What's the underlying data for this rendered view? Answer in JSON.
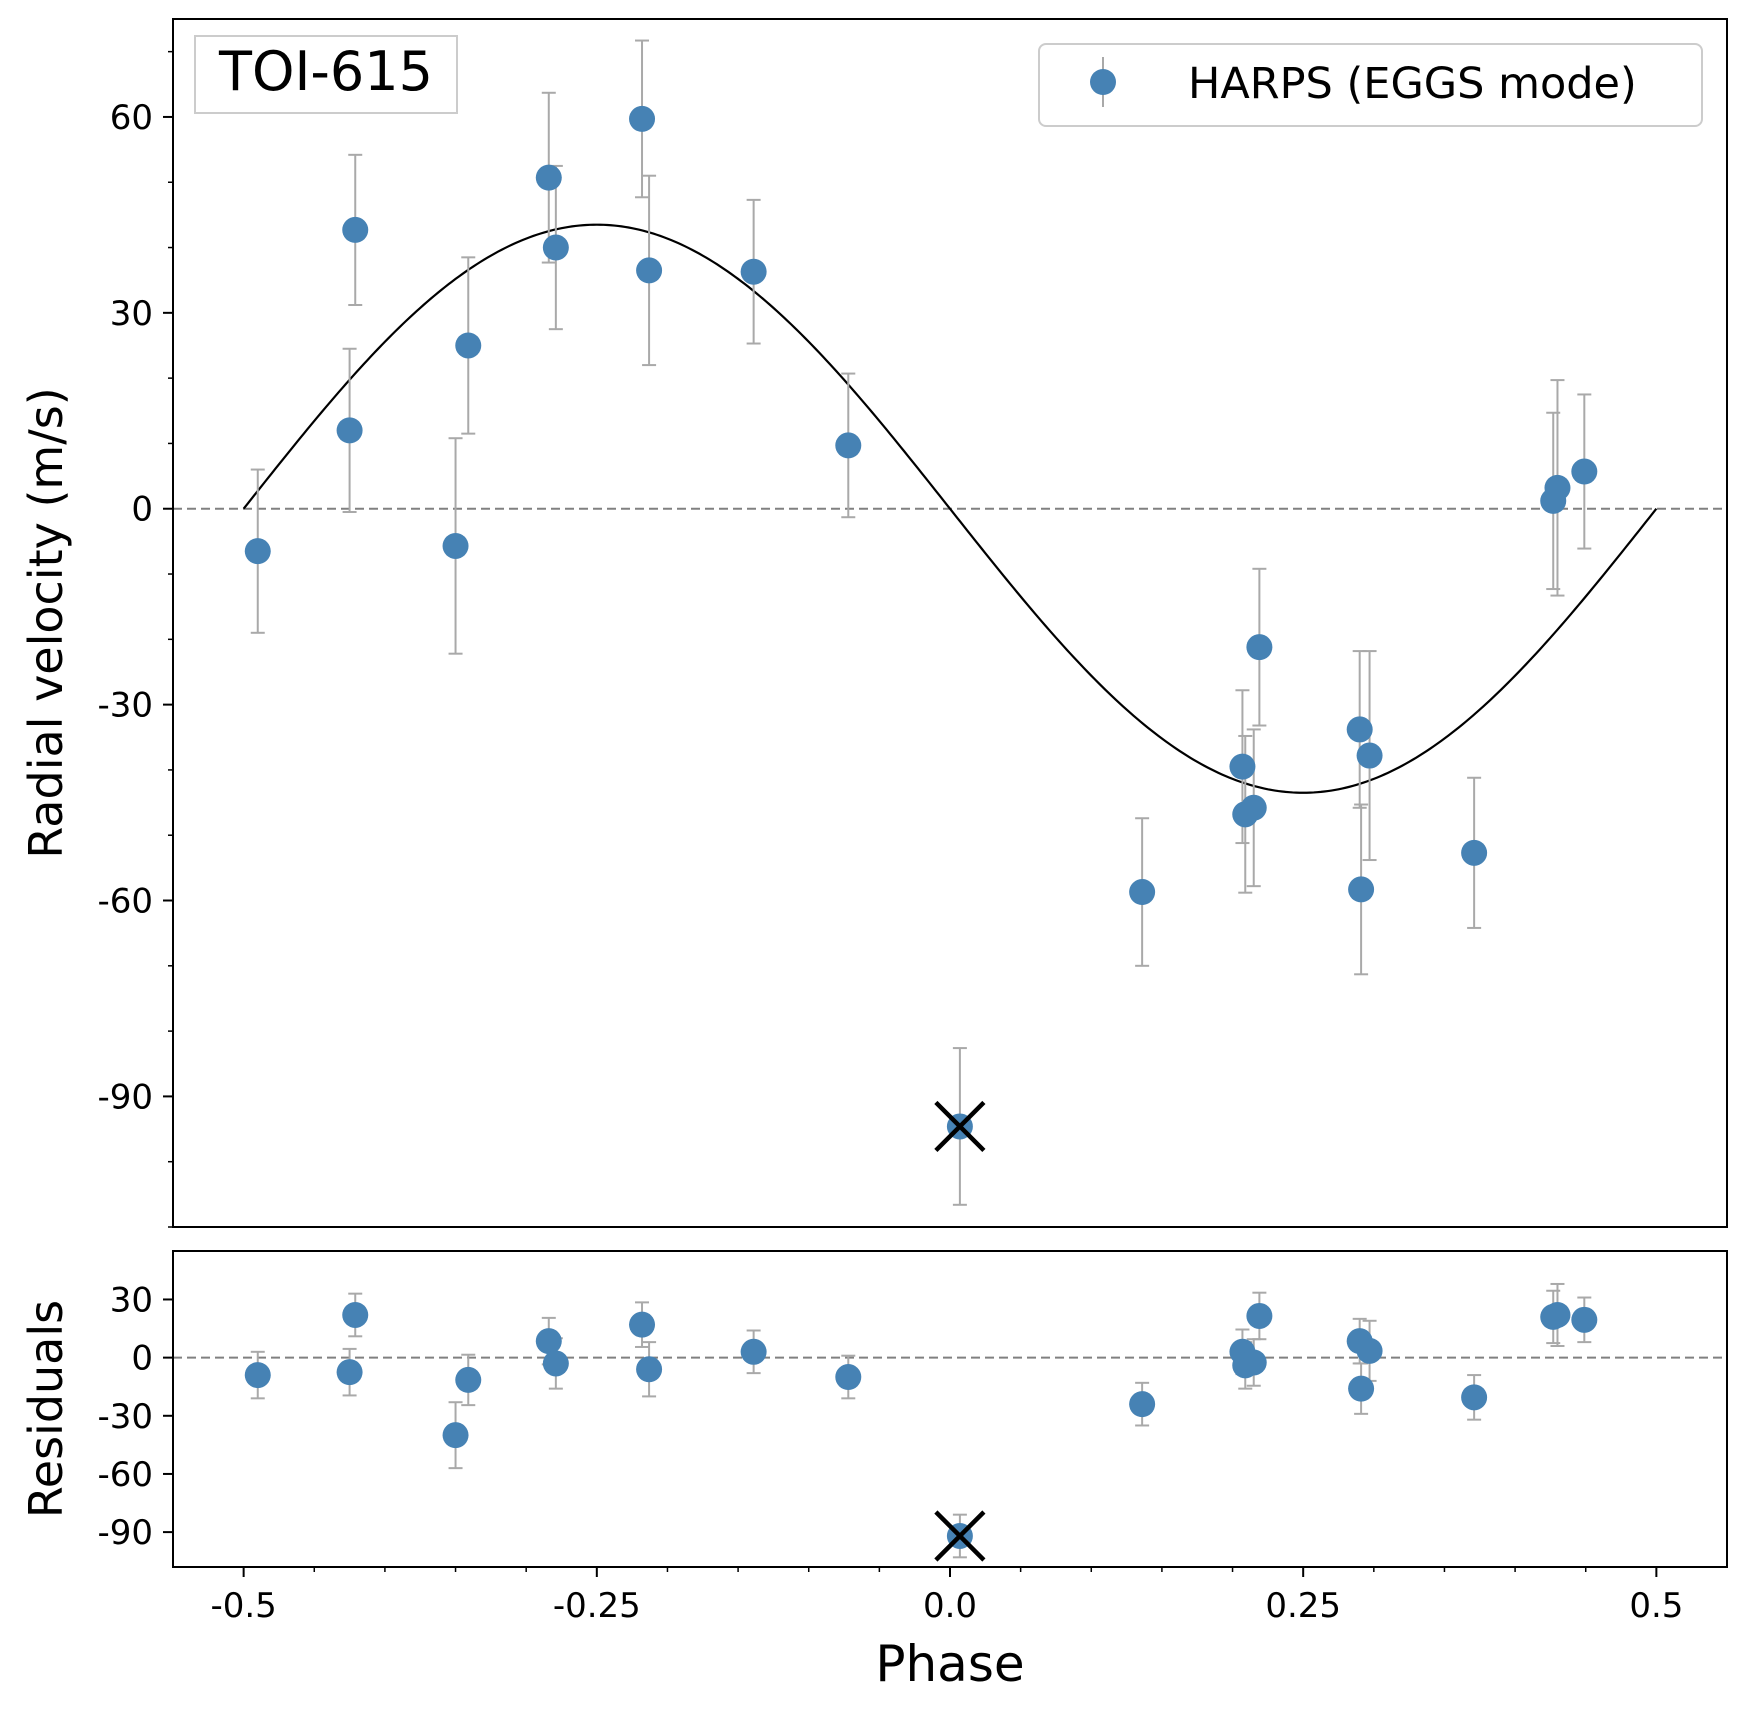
{
  "chart_data": {
    "type": "scatter",
    "title": "TOI-615",
    "xlabel": "Phase",
    "xlim": [
      -0.55,
      0.55
    ],
    "x_ticks": [
      -0.5,
      -0.25,
      0.0,
      0.25,
      0.5
    ],
    "x_tick_labels": [
      "-0.5",
      "-0.25",
      "0.0",
      "0.25",
      "0.5"
    ],
    "legend": {
      "label": "HARPS (EGGS mode)",
      "placement": "top-right"
    },
    "series_color": "#4682b4",
    "errorbar_color": "#a9a9a9",
    "model": {
      "type": "sinusoid",
      "amplitude": 43.5,
      "phase_range": [
        -0.5,
        0.5
      ],
      "shape": "-K*sin(2*pi*phase)"
    },
    "panels": {
      "rv": {
        "ylabel": "Radial velocity (m/s)",
        "ylim": [
          -110,
          75
        ],
        "y_ticks": [
          60,
          30,
          0,
          -30,
          -60,
          -90
        ],
        "y_tick_labels": [
          "60",
          "30",
          "0",
          "-30",
          "-60",
          "-90"
        ],
        "reference_line": 0,
        "points": [
          {
            "phase": -0.49,
            "value": -6.5,
            "error": 12.5
          },
          {
            "phase": -0.425,
            "value": 12.0,
            "error": 12.5
          },
          {
            "phase": -0.421,
            "value": 42.7,
            "error": 11.5
          },
          {
            "phase": -0.35,
            "value": -5.7,
            "error": 16.5
          },
          {
            "phase": -0.341,
            "value": 25.0,
            "error": 13.5
          },
          {
            "phase": -0.284,
            "value": 50.7,
            "error": 13.0
          },
          {
            "phase": -0.279,
            "value": 40.0,
            "error": 12.5
          },
          {
            "phase": -0.218,
            "value": 59.7,
            "error": 12.0
          },
          {
            "phase": -0.213,
            "value": 36.5,
            "error": 14.5
          },
          {
            "phase": -0.139,
            "value": 36.3,
            "error": 11.0
          },
          {
            "phase": -0.072,
            "value": 9.7,
            "error": 11.0
          },
          {
            "phase": 0.136,
            "value": -58.7,
            "error": 11.3
          },
          {
            "phase": 0.207,
            "value": -39.5,
            "error": 11.7
          },
          {
            "phase": 0.209,
            "value": -46.8,
            "error": 12.0
          },
          {
            "phase": 0.215,
            "value": -45.8,
            "error": 12.0
          },
          {
            "phase": 0.219,
            "value": -21.2,
            "error": 12.0
          },
          {
            "phase": 0.29,
            "value": -33.8,
            "error": 12.0
          },
          {
            "phase": 0.291,
            "value": -58.3,
            "error": 13.0
          },
          {
            "phase": 0.297,
            "value": -37.8,
            "error": 16.0
          },
          {
            "phase": 0.371,
            "value": -52.7,
            "error": 11.5
          },
          {
            "phase": 0.427,
            "value": 1.2,
            "error": 13.5
          },
          {
            "phase": 0.43,
            "value": 3.2,
            "error": 16.5
          },
          {
            "phase": 0.449,
            "value": 5.7,
            "error": 11.8
          }
        ],
        "excluded_point": {
          "phase": 0.007,
          "value": -94.6,
          "error": 12.0
        }
      },
      "residuals": {
        "ylabel": "Residuals",
        "ylim": [
          -108,
          55
        ],
        "y_ticks": [
          30,
          0,
          -30,
          -60,
          -90
        ],
        "y_tick_labels": [
          "30",
          "0",
          "-30",
          "-60",
          "-90"
        ],
        "reference_line": 0,
        "points": [
          {
            "phase": -0.49,
            "value": -9.0,
            "error": 12.0
          },
          {
            "phase": -0.425,
            "value": -7.5,
            "error": 12.0
          },
          {
            "phase": -0.421,
            "value": 22.0,
            "error": 11.0
          },
          {
            "phase": -0.35,
            "value": -40.0,
            "error": 17.0
          },
          {
            "phase": -0.341,
            "value": -11.5,
            "error": 13.0
          },
          {
            "phase": -0.284,
            "value": 8.5,
            "error": 12.0
          },
          {
            "phase": -0.279,
            "value": -3.0,
            "error": 13.0
          },
          {
            "phase": -0.218,
            "value": 17.0,
            "error": 11.5
          },
          {
            "phase": -0.213,
            "value": -6.0,
            "error": 14.0
          },
          {
            "phase": -0.139,
            "value": 3.0,
            "error": 11.0
          },
          {
            "phase": -0.072,
            "value": -10.0,
            "error": 11.0
          },
          {
            "phase": 0.136,
            "value": -24.0,
            "error": 11.0
          },
          {
            "phase": 0.207,
            "value": 3.0,
            "error": 11.5
          },
          {
            "phase": 0.209,
            "value": -4.0,
            "error": 12.0
          },
          {
            "phase": 0.215,
            "value": -2.5,
            "error": 12.0
          },
          {
            "phase": 0.219,
            "value": 21.5,
            "error": 12.0
          },
          {
            "phase": 0.29,
            "value": 8.5,
            "error": 11.5
          },
          {
            "phase": 0.291,
            "value": -16.0,
            "error": 13.0
          },
          {
            "phase": 0.297,
            "value": 3.5,
            "error": 15.5
          },
          {
            "phase": 0.371,
            "value": -20.5,
            "error": 11.5
          },
          {
            "phase": 0.427,
            "value": 21.0,
            "error": 13.5
          },
          {
            "phase": 0.43,
            "value": 22.0,
            "error": 16.0
          },
          {
            "phase": 0.449,
            "value": 19.5,
            "error": 11.5
          }
        ],
        "excluded_point": {
          "phase": 0.007,
          "value": -92.0,
          "error": 11.0
        }
      }
    }
  }
}
